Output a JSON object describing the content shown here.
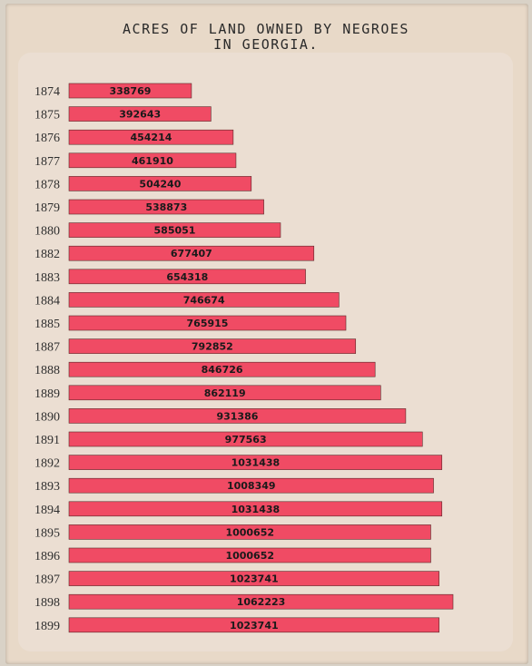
{
  "chart_data": {
    "type": "bar",
    "orientation": "horizontal",
    "title": "ACRES OF LAND OWNED BY NEGROES\nIN GEORGIA.",
    "categories": [
      "1874",
      "1875",
      "1876",
      "1877",
      "1878",
      "1879",
      "1880",
      "1882",
      "1883",
      "1884",
      "1885",
      "1887",
      "1888",
      "1889",
      "1890",
      "1891",
      "1892",
      "1893",
      "1894",
      "1895",
      "1896",
      "1897",
      "1898",
      "1899"
    ],
    "values": [
      338769,
      392643,
      454214,
      461910,
      504240,
      538873,
      585051,
      677407,
      654318,
      746674,
      765915,
      792852,
      846726,
      862119,
      931386,
      977563,
      1031438,
      1008349,
      1031438,
      1000652,
      1000652,
      1023741,
      1062223,
      1023741
    ],
    "xlim": [
      0,
      1062223
    ],
    "bar_color": "#f04b64",
    "background": "#ebded2",
    "grid": false,
    "legend": "none"
  }
}
